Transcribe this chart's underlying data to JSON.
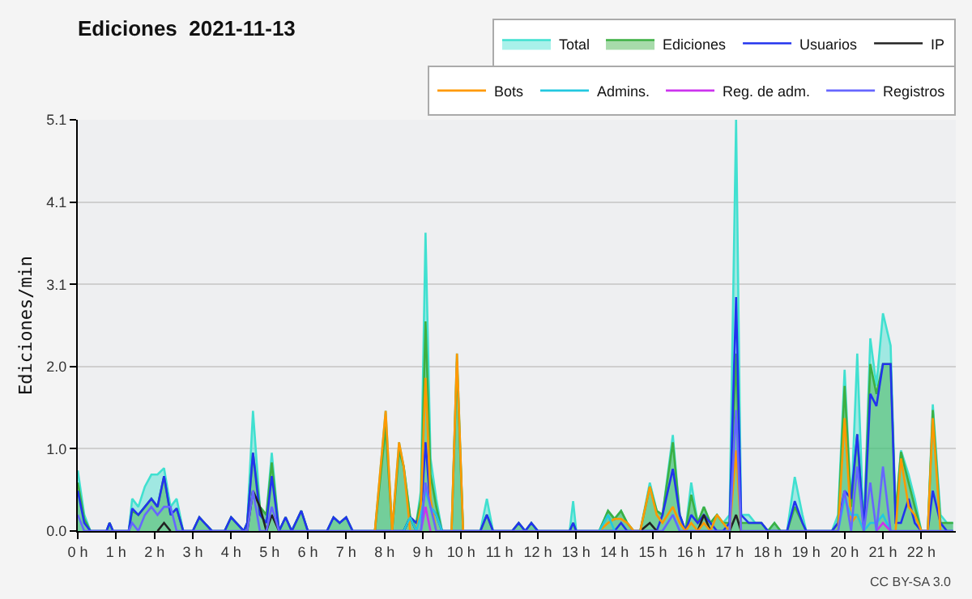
{
  "chart_data": {
    "type": "line",
    "title": "Ediciones  2021-11-13",
    "ylabel": "Ediciones/min",
    "x": [
      0,
      0.17,
      0.33,
      0.75,
      0.83,
      0.92,
      1.33,
      1.42,
      1.58,
      1.75,
      1.92,
      2.08,
      2.25,
      2.42,
      2.58,
      2.75,
      3.0,
      3.17,
      3.5,
      3.83,
      4.0,
      4.33,
      4.42,
      4.57,
      4.75,
      4.92,
      5.06,
      5.25,
      5.42,
      5.58,
      5.83,
      6.0,
      6.5,
      6.67,
      6.83,
      7.0,
      7.17,
      7.75,
      8.03,
      8.2,
      8.38,
      8.5,
      8.67,
      8.83,
      8.95,
      9.07,
      9.2,
      9.35,
      9.5,
      9.75,
      9.89,
      10.05,
      10.5,
      10.67,
      10.83,
      11.33,
      11.5,
      11.67,
      11.83,
      12.0,
      12.83,
      12.92,
      13.0,
      13.6,
      13.83,
      14.0,
      14.17,
      14.33,
      14.5,
      14.67,
      14.92,
      15.1,
      15.25,
      15.52,
      15.7,
      15.85,
      16.0,
      16.17,
      16.33,
      16.5,
      16.67,
      16.83,
      17.0,
      17.17,
      17.3,
      17.5,
      17.67,
      17.83,
      18.0,
      18.17,
      18.33,
      18.5,
      18.7,
      18.9,
      19.0,
      19.67,
      19.83,
      20.0,
      20.17,
      20.33,
      20.5,
      20.67,
      20.83,
      21.0,
      21.2,
      21.33,
      21.47,
      21.67,
      21.83,
      22.0,
      22.17,
      22.3,
      22.5,
      22.67,
      22.83
    ],
    "series": [
      {
        "name": "Total",
        "type": "area",
        "color": "#40e0d0",
        "values": [
          0.75,
          0.2,
          0,
          0,
          0.1,
          0,
          0,
          0.4,
          0.3,
          0.55,
          0.7,
          0.7,
          0.78,
          0.3,
          0.4,
          0,
          0,
          0.17,
          0,
          0,
          0.17,
          0,
          0.1,
          1.49,
          0.3,
          0.2,
          0.97,
          0,
          0.17,
          0,
          0.25,
          0,
          0,
          0.17,
          0.1,
          0.17,
          0,
          0,
          1.49,
          0,
          1.1,
          0.8,
          0.17,
          0.1,
          0.5,
          3.7,
          0.9,
          0.4,
          0,
          0,
          2.2,
          0,
          0,
          0.4,
          0,
          0,
          0.1,
          0,
          0.1,
          0,
          0,
          0.37,
          0,
          0,
          0.25,
          0.15,
          0.25,
          0.1,
          0,
          0,
          0.6,
          0.25,
          0.2,
          1.19,
          0.2,
          0,
          0.6,
          0.1,
          0.3,
          0.1,
          0.2,
          0.1,
          0.2,
          5.1,
          0.2,
          0.2,
          0.1,
          0.1,
          0,
          0.1,
          0,
          0,
          0.67,
          0.2,
          0,
          0,
          0.2,
          2.0,
          0.3,
          2.2,
          0,
          2.39,
          1.8,
          2.7,
          2.3,
          0.2,
          1.0,
          0.7,
          0.4,
          0,
          0,
          1.57,
          0.2,
          0.1,
          0.1
        ]
      },
      {
        "name": "Ediciones",
        "type": "area",
        "color": "#3cb043",
        "values": [
          0.6,
          0.15,
          0,
          0,
          0.1,
          0,
          0,
          0.25,
          0.2,
          0.3,
          0.4,
          0.3,
          0.68,
          0.2,
          0.28,
          0,
          0,
          0.17,
          0,
          0,
          0.17,
          0,
          0.1,
          0.97,
          0.3,
          0.2,
          0.85,
          0,
          0.17,
          0,
          0.25,
          0,
          0,
          0.17,
          0.1,
          0.17,
          0,
          0,
          1.3,
          0,
          1.0,
          0.8,
          0.17,
          0.1,
          0.4,
          2.6,
          0.7,
          0.3,
          0,
          0,
          2.1,
          0,
          0,
          0.2,
          0,
          0,
          0.1,
          0,
          0.1,
          0,
          0,
          0.1,
          0,
          0,
          0.25,
          0.15,
          0.25,
          0.1,
          0,
          0,
          0.55,
          0.25,
          0.2,
          1.1,
          0.2,
          0,
          0.45,
          0.1,
          0.3,
          0.1,
          0.2,
          0.1,
          0.1,
          2.2,
          0.1,
          0.1,
          0.1,
          0.1,
          0,
          0.1,
          0,
          0,
          0.3,
          0.1,
          0,
          0,
          0.1,
          1.8,
          0.3,
          1.2,
          0,
          2.07,
          1.7,
          2.07,
          2.07,
          0.2,
          0.98,
          0.6,
          0.3,
          0,
          0,
          1.5,
          0.1,
          0.1,
          0.1
        ]
      },
      {
        "name": "Usuarios",
        "color": "#2233ee",
        "values": [
          0.5,
          0.1,
          0,
          0,
          0.1,
          0,
          0,
          0.28,
          0.2,
          0.3,
          0.4,
          0.3,
          0.68,
          0.2,
          0.28,
          0,
          0,
          0.17,
          0,
          0,
          0.17,
          0,
          0.1,
          0.97,
          0.2,
          0.1,
          0.68,
          0,
          0.17,
          0,
          0.25,
          0,
          0,
          0.17,
          0.1,
          0.17,
          0,
          0,
          0,
          0,
          0,
          0,
          0.17,
          0.1,
          0.2,
          1.1,
          0.3,
          0.2,
          0,
          0,
          0,
          0,
          0,
          0.2,
          0,
          0,
          0.1,
          0,
          0.1,
          0,
          0,
          0.1,
          0,
          0,
          0,
          0,
          0.1,
          0,
          0,
          0,
          0,
          0,
          0.2,
          0.77,
          0.2,
          0,
          0.2,
          0.1,
          0.2,
          0.1,
          0,
          0,
          0.1,
          2.9,
          0.2,
          0.1,
          0.1,
          0.1,
          0,
          0,
          0,
          0,
          0.37,
          0.1,
          0,
          0,
          0.1,
          0.5,
          0.4,
          1.2,
          0,
          1.7,
          1.55,
          2.07,
          2.07,
          0.1,
          0.1,
          0.4,
          0.1,
          0,
          0,
          0.5,
          0.1,
          0,
          0
        ]
      },
      {
        "name": "IP",
        "color": "#222222",
        "values": [
          null,
          null,
          null,
          null,
          null,
          null,
          null,
          null,
          null,
          null,
          null,
          0,
          0.1,
          0,
          null,
          null,
          null,
          null,
          null,
          null,
          null,
          null,
          0,
          0.5,
          0.3,
          0,
          0.2,
          0,
          null,
          null,
          null,
          null,
          null,
          null,
          null,
          null,
          null,
          null,
          null,
          null,
          null,
          0,
          0.17,
          0,
          null,
          null,
          null,
          null,
          null,
          null,
          null,
          null,
          null,
          null,
          null,
          null,
          null,
          null,
          null,
          null,
          null,
          null,
          null,
          null,
          null,
          null,
          null,
          null,
          null,
          0,
          0.1,
          0,
          null,
          null,
          null,
          null,
          null,
          0,
          0.2,
          0,
          null,
          null,
          0,
          0.2,
          0,
          null,
          null,
          null,
          null,
          null,
          null,
          null,
          null,
          null,
          null,
          null,
          null,
          null,
          null,
          null,
          null,
          null,
          null,
          null,
          null,
          null,
          null,
          null,
          null,
          null,
          null,
          null,
          null,
          null,
          null
        ]
      },
      {
        "name": "Bots",
        "color": "#ff9900",
        "values": [
          null,
          null,
          null,
          null,
          null,
          null,
          null,
          null,
          null,
          null,
          null,
          null,
          null,
          null,
          null,
          null,
          null,
          null,
          null,
          null,
          null,
          null,
          null,
          null,
          null,
          null,
          null,
          null,
          null,
          null,
          null,
          null,
          null,
          null,
          null,
          null,
          null,
          0,
          1.49,
          0,
          1.1,
          0.8,
          0,
          0,
          0.3,
          1.9,
          0.4,
          0,
          null,
          0,
          2.2,
          0,
          null,
          null,
          null,
          null,
          null,
          null,
          null,
          null,
          null,
          null,
          null,
          0,
          0.1,
          0.15,
          0.15,
          0.1,
          0,
          0,
          0.55,
          0.2,
          0.1,
          0.3,
          0.1,
          0,
          0.1,
          0,
          0.1,
          0,
          0.2,
          0.1,
          0,
          1.0,
          0,
          null,
          null,
          null,
          null,
          null,
          null,
          null,
          null,
          null,
          null,
          null,
          0,
          1.4,
          0.1,
          0.2,
          0,
          null,
          null,
          null,
          null,
          0,
          0.9,
          0.3,
          0.2,
          0,
          0,
          1.4,
          0,
          null,
          null
        ]
      },
      {
        "name": "Admins.",
        "color": "#22c8e0",
        "values": [
          null,
          null,
          null,
          null,
          null,
          null,
          null,
          null,
          null,
          null,
          null,
          null,
          null,
          null,
          null,
          null,
          null,
          null,
          null,
          null,
          null,
          null,
          null,
          null,
          null,
          null,
          null,
          null,
          null,
          null,
          null,
          null,
          null,
          null,
          null,
          null,
          null,
          null,
          null,
          null,
          null,
          0,
          0.17,
          0,
          0.2,
          0.5,
          0.3,
          0.2,
          0,
          null,
          null,
          null,
          null,
          null,
          null,
          null,
          null,
          null,
          null,
          null,
          null,
          null,
          null,
          0,
          0.2,
          0,
          null,
          null,
          null,
          null,
          null,
          null,
          0,
          0.2,
          0,
          null,
          null,
          null,
          null,
          null,
          null,
          null,
          null,
          null,
          null,
          null,
          null,
          null,
          null,
          null,
          null,
          null,
          null,
          null,
          null,
          null,
          0,
          0.4,
          0.2,
          0.2,
          0,
          0.1,
          0.1,
          0.2,
          0,
          null,
          null,
          null,
          null,
          null,
          null,
          null,
          null,
          null,
          null
        ]
      },
      {
        "name": "Reg. de adm.",
        "color": "#cc33ee",
        "values": [
          null,
          null,
          null,
          null,
          null,
          null,
          null,
          null,
          null,
          null,
          null,
          null,
          null,
          null,
          null,
          null,
          null,
          null,
          null,
          null,
          null,
          null,
          null,
          null,
          null,
          null,
          null,
          null,
          null,
          null,
          null,
          null,
          null,
          null,
          null,
          null,
          null,
          null,
          null,
          null,
          null,
          null,
          null,
          null,
          0,
          0.3,
          0,
          null,
          null,
          null,
          null,
          null,
          null,
          null,
          null,
          null,
          null,
          null,
          null,
          null,
          null,
          null,
          null,
          null,
          null,
          null,
          null,
          null,
          null,
          null,
          null,
          null,
          null,
          null,
          null,
          null,
          null,
          null,
          null,
          null,
          null,
          null,
          null,
          null,
          null,
          null,
          null,
          null,
          null,
          null,
          null,
          null,
          null,
          null,
          null,
          null,
          null,
          null,
          null,
          null,
          null,
          null,
          0,
          0.1,
          0,
          null,
          null,
          null,
          null,
          null,
          null,
          null,
          null,
          null,
          null
        ]
      },
      {
        "name": "Registros",
        "color": "#6666ff",
        "values": [
          0.2,
          0,
          0,
          0,
          0,
          0,
          0,
          0.1,
          0,
          0.2,
          0.3,
          0.2,
          0.3,
          0.3,
          0,
          0,
          0,
          0,
          0,
          0,
          0,
          0,
          0,
          0.5,
          0,
          0,
          0.3,
          0,
          0,
          0,
          0,
          0,
          0,
          0,
          0,
          0,
          0,
          0,
          0,
          0,
          0,
          0,
          0,
          0,
          0,
          0.6,
          0.3,
          0,
          0,
          0,
          0,
          0,
          0,
          0,
          0,
          0,
          0,
          0,
          0,
          0,
          0,
          0,
          0,
          0,
          0,
          0,
          0,
          0,
          0,
          0,
          0,
          0,
          0,
          0.2,
          0,
          0,
          0,
          0,
          0,
          0,
          0,
          0,
          0,
          1.5,
          0,
          0,
          0,
          0,
          0,
          0,
          0,
          0,
          0,
          0,
          0,
          0,
          0,
          0.5,
          0,
          0.8,
          0,
          0.6,
          0,
          0.8,
          0,
          0,
          0,
          0,
          0,
          0,
          0,
          0,
          0,
          0,
          0
        ]
      }
    ],
    "xlim": [
      0,
      22.9
    ],
    "xticks": [
      {
        "value": 0,
        "label": "0 h"
      },
      {
        "value": 1,
        "label": "1 h"
      },
      {
        "value": 2,
        "label": "2 h"
      },
      {
        "value": 3,
        "label": "3 h"
      },
      {
        "value": 4,
        "label": "4 h"
      },
      {
        "value": 5,
        "label": "5 h"
      },
      {
        "value": 6,
        "label": "6 h"
      },
      {
        "value": 7,
        "label": "7 h"
      },
      {
        "value": 8,
        "label": "8 h"
      },
      {
        "value": 9,
        "label": "9 h"
      },
      {
        "value": 10,
        "label": "10 h"
      },
      {
        "value": 11,
        "label": "11 h"
      },
      {
        "value": 12,
        "label": "12 h"
      },
      {
        "value": 13,
        "label": "13 h"
      },
      {
        "value": 14,
        "label": "14 h"
      },
      {
        "value": 15,
        "label": "15 h"
      },
      {
        "value": 16,
        "label": "16 h"
      },
      {
        "value": 17,
        "label": "17 h"
      },
      {
        "value": 18,
        "label": "18 h"
      },
      {
        "value": 19,
        "label": "19 h"
      },
      {
        "value": 20,
        "label": "20 h"
      },
      {
        "value": 21,
        "label": "21 h"
      },
      {
        "value": 22,
        "label": "22 h"
      }
    ],
    "ylim": [
      0,
      5.1
    ],
    "yticks": [
      {
        "value": 0,
        "label": "0.0"
      },
      {
        "value": 1.02,
        "label": "1.0"
      },
      {
        "value": 2.04,
        "label": "2.0"
      },
      {
        "value": 3.06,
        "label": "3.1"
      },
      {
        "value": 4.08,
        "label": "4.1"
      },
      5.1
    ],
    "grid": "y",
    "legend": "top right",
    "marker": "none",
    "annotations": [
      "CC BY-SA 3.0"
    ]
  }
}
